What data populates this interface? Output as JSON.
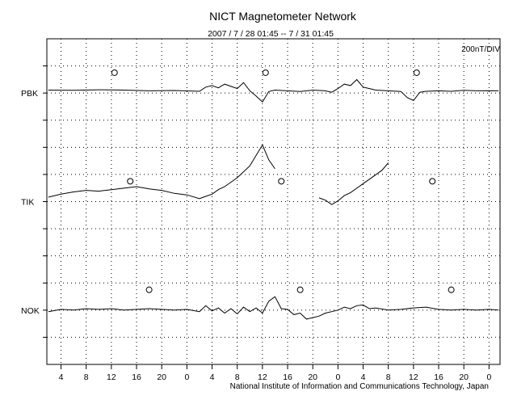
{
  "chart_data": {
    "type": "line",
    "title": "NICT Magnetometer Network",
    "subtitle": "2007 / 7 / 28   01:45 --  7 / 31   01:45",
    "scale_label": "200nT/DIV",
    "footer": "National Institute of Information and Communications Technology, Japan",
    "xlabel": "",
    "ylabel": "",
    "x_unit": "hour of day",
    "xlim": [
      1.75,
      73.75
    ],
    "x_tick_labels": [
      "4",
      "8",
      "12",
      "16",
      "20",
      "0",
      "4",
      "8",
      "12",
      "16",
      "20",
      "0",
      "4",
      "8",
      "12",
      "16",
      "20",
      "0"
    ],
    "y_divisions": 12,
    "grid": true,
    "stations": [
      {
        "name": "PBK",
        "local_midnight_markers": [
          12.5,
          36.5,
          60.5
        ],
        "series": [
          [
            2,
            0.2
          ],
          [
            6,
            0.18
          ],
          [
            10,
            0.22
          ],
          [
            14,
            0.2
          ],
          [
            18,
            0.15
          ],
          [
            22,
            0.17
          ],
          [
            26,
            0.12
          ],
          [
            27,
            0.4
          ],
          [
            28,
            0.5
          ],
          [
            29,
            0.35
          ],
          [
            30,
            0.6
          ],
          [
            31,
            0.45
          ],
          [
            32,
            0.3
          ],
          [
            33,
            0.7
          ],
          [
            34,
            0.15
          ],
          [
            35,
            -0.2
          ],
          [
            36,
            -0.6
          ],
          [
            37,
            0.1
          ],
          [
            38,
            0.2
          ],
          [
            40,
            0.15
          ],
          [
            42,
            0.1
          ],
          [
            44,
            0.2
          ],
          [
            46,
            0.15
          ],
          [
            47,
            0.05
          ],
          [
            48,
            0.3
          ],
          [
            49,
            0.6
          ],
          [
            50,
            0.5
          ],
          [
            51,
            0.9
          ],
          [
            52,
            0.4
          ],
          [
            53,
            0.3
          ],
          [
            54,
            0.2
          ],
          [
            56,
            0.15
          ],
          [
            58,
            0.1
          ],
          [
            59,
            -0.3
          ],
          [
            60,
            -0.5
          ],
          [
            61,
            0.05
          ],
          [
            62,
            0.12
          ],
          [
            64,
            0.15
          ],
          [
            66,
            0.12
          ],
          [
            68,
            0.18
          ],
          [
            70,
            0.15
          ],
          [
            72,
            0.16
          ],
          [
            73.5,
            0.15
          ]
        ]
      },
      {
        "name": "TIK",
        "local_midnight_markers": [
          15,
          39,
          63
        ],
        "series": [
          [
            2,
            0.3
          ],
          [
            4,
            0.5
          ],
          [
            6,
            0.65
          ],
          [
            8,
            0.75
          ],
          [
            10,
            0.7
          ],
          [
            12,
            0.8
          ],
          [
            14,
            0.9
          ],
          [
            16,
            1.0
          ],
          [
            18,
            0.85
          ],
          [
            20,
            0.75
          ],
          [
            22,
            0.55
          ],
          [
            24,
            0.45
          ],
          [
            26,
            0.2
          ],
          [
            27,
            0.35
          ],
          [
            28,
            0.5
          ],
          [
            29,
            0.8
          ],
          [
            30,
            1.0
          ],
          [
            31,
            1.3
          ],
          [
            32,
            1.6
          ],
          [
            33,
            2.0
          ],
          [
            34,
            2.4
          ],
          [
            35,
            3.1
          ],
          [
            36,
            3.8
          ],
          [
            37,
            2.8
          ],
          [
            38,
            2.2
          ]
        ],
        "series_b": [
          [
            45,
            0.25
          ],
          [
            46,
            0.1
          ],
          [
            47,
            -0.2
          ],
          [
            48,
            0.05
          ],
          [
            49,
            0.4
          ],
          [
            50,
            0.6
          ],
          [
            51,
            0.9
          ],
          [
            52,
            1.2
          ],
          [
            53,
            1.5
          ],
          [
            54,
            1.8
          ],
          [
            55,
            2.1
          ],
          [
            56,
            2.6
          ]
        ]
      },
      {
        "name": "NOK",
        "local_midnight_markers": [
          18,
          42,
          66
        ],
        "series": [
          [
            2,
            -0.1
          ],
          [
            4,
            0.05
          ],
          [
            6,
            0.0
          ],
          [
            8,
            0.1
          ],
          [
            10,
            0.05
          ],
          [
            12,
            0.1
          ],
          [
            14,
            0.0
          ],
          [
            16,
            0.05
          ],
          [
            18,
            0.1
          ],
          [
            20,
            0.05
          ],
          [
            22,
            0.0
          ],
          [
            24,
            0.05
          ],
          [
            26,
            -0.1
          ],
          [
            27,
            0.3
          ],
          [
            28,
            -0.05
          ],
          [
            29,
            0.15
          ],
          [
            30,
            -0.2
          ],
          [
            31,
            0.1
          ],
          [
            32,
            -0.25
          ],
          [
            33,
            0.2
          ],
          [
            34,
            -0.1
          ],
          [
            35,
            0.15
          ],
          [
            36,
            -0.2
          ],
          [
            37,
            0.6
          ],
          [
            38,
            0.9
          ],
          [
            39,
            0.1
          ],
          [
            40,
            0.05
          ],
          [
            41,
            -0.3
          ],
          [
            42,
            -0.2
          ],
          [
            43,
            -0.6
          ],
          [
            44,
            -0.5
          ],
          [
            45,
            -0.4
          ],
          [
            46,
            -0.2
          ],
          [
            47,
            -0.1
          ],
          [
            48,
            0.0
          ],
          [
            49,
            0.2
          ],
          [
            50,
            0.1
          ],
          [
            51,
            0.3
          ],
          [
            52,
            0.35
          ],
          [
            53,
            0.1
          ],
          [
            54,
            0.15
          ],
          [
            56,
            0.0
          ],
          [
            58,
            0.05
          ],
          [
            60,
            0.15
          ],
          [
            62,
            0.2
          ],
          [
            64,
            0.05
          ],
          [
            66,
            0.0
          ],
          [
            68,
            0.05
          ],
          [
            70,
            0.0
          ],
          [
            72,
            0.05
          ],
          [
            73.5,
            0.0
          ]
        ]
      }
    ]
  }
}
